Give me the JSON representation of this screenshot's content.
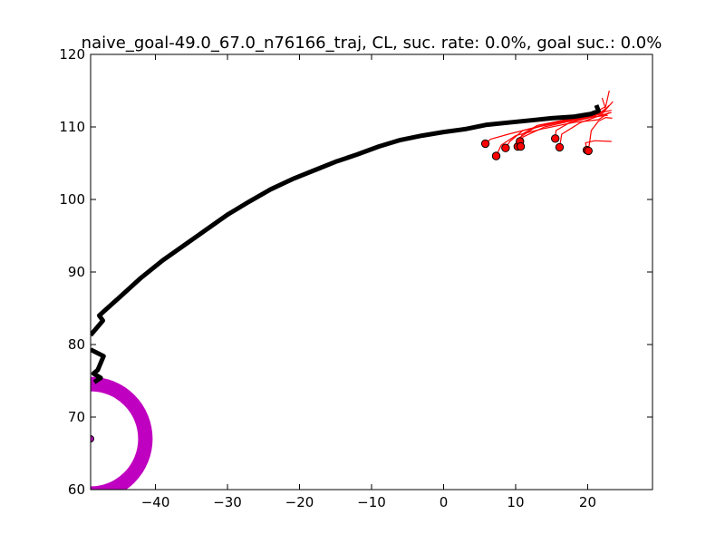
{
  "chart_data": {
    "type": "line",
    "title": "naive_goal-49.0_67.0_n76166_traj, CL, suc. rate: 0.0%, goal suc.: 0.0%",
    "xlabel": "",
    "ylabel": "",
    "xlim": [
      -49,
      29
    ],
    "ylim": [
      60,
      120
    ],
    "xticks": [
      -40,
      -30,
      -20,
      -10,
      0,
      10,
      20
    ],
    "yticks": [
      60,
      70,
      80,
      90,
      100,
      110,
      120
    ],
    "grid": false,
    "goal": {
      "center": [
        -49.0,
        67.0
      ],
      "radius": 7.6,
      "color": "#c000c0"
    },
    "series": [
      {
        "role": "main-trajectory",
        "color": "#000000",
        "points": [
          [
            -49.0,
            81.3
          ],
          [
            -47.3,
            83.3
          ],
          [
            -47.8,
            84.0
          ],
          [
            -45.0,
            86.5
          ],
          [
            -42.0,
            89.2
          ],
          [
            -39.0,
            91.6
          ],
          [
            -36.0,
            93.7
          ],
          [
            -33.0,
            95.8
          ],
          [
            -30.0,
            97.9
          ],
          [
            -27.0,
            99.7
          ],
          [
            -24.0,
            101.4
          ],
          [
            -21.0,
            102.8
          ],
          [
            -18.0,
            104.0
          ],
          [
            -15.0,
            105.2
          ],
          [
            -12.0,
            106.2
          ],
          [
            -9.0,
            107.3
          ],
          [
            -6.0,
            108.2
          ],
          [
            -3.0,
            108.8
          ],
          [
            0.0,
            109.3
          ],
          [
            3.0,
            109.7
          ],
          [
            6.0,
            110.3
          ],
          [
            9.0,
            110.6
          ],
          [
            12.0,
            110.9
          ],
          [
            15.0,
            111.2
          ],
          [
            18.0,
            111.4
          ],
          [
            20.5,
            111.8
          ],
          [
            21.5,
            112.2
          ],
          [
            21.2,
            113.0
          ]
        ]
      },
      {
        "role": "main-trajectory-tail",
        "color": "#000000",
        "points": [
          [
            -49.0,
            79.3
          ],
          [
            -47.2,
            78.4
          ],
          [
            -48.0,
            76.5
          ],
          [
            -48.6,
            76.0
          ],
          [
            -47.6,
            75.4
          ],
          [
            -48.5,
            74.8
          ]
        ]
      }
    ],
    "red_color": "#ff0000",
    "red_trajectories": [
      [
        [
          5.8,
          107.7
        ],
        [
          6.5,
          108.3
        ],
        [
          9.0,
          109.0
        ],
        [
          13.0,
          110.0
        ],
        [
          17.0,
          110.8
        ],
        [
          21.0,
          111.5
        ],
        [
          22.5,
          112.5
        ],
        [
          22.0,
          114.0
        ]
      ],
      [
        [
          7.3,
          106.0
        ],
        [
          8.0,
          107.5
        ],
        [
          10.0,
          108.8
        ],
        [
          14.0,
          109.8
        ],
        [
          18.0,
          110.6
        ],
        [
          21.5,
          111.0
        ],
        [
          23.0,
          112.0
        ]
      ],
      [
        [
          8.6,
          107.1
        ],
        [
          9.2,
          108.0
        ],
        [
          11.0,
          109.5
        ],
        [
          15.0,
          110.5
        ],
        [
          19.0,
          111.2
        ],
        [
          22.0,
          111.8
        ],
        [
          23.5,
          113.5
        ]
      ],
      [
        [
          10.3,
          107.3
        ],
        [
          10.5,
          108.5
        ],
        [
          12.5,
          109.8
        ],
        [
          16.0,
          110.8
        ],
        [
          20.0,
          111.5
        ],
        [
          22.5,
          112.8
        ],
        [
          23.0,
          115.0
        ]
      ],
      [
        [
          10.6,
          108.0
        ],
        [
          10.9,
          109.0
        ],
        [
          13.0,
          110.2
        ],
        [
          17.0,
          111.0
        ],
        [
          21.0,
          111.8
        ],
        [
          23.3,
          112.3
        ]
      ],
      [
        [
          10.7,
          107.3
        ],
        [
          11.0,
          108.6
        ],
        [
          14.0,
          110.0
        ],
        [
          18.0,
          110.9
        ],
        [
          21.0,
          111.4
        ],
        [
          22.8,
          111.6
        ]
      ],
      [
        [
          15.5,
          108.4
        ],
        [
          15.6,
          109.5
        ],
        [
          17.5,
          110.6
        ],
        [
          20.0,
          111.2
        ],
        [
          22.0,
          112.0
        ],
        [
          23.0,
          113.0
        ]
      ],
      [
        [
          16.1,
          107.2
        ],
        [
          16.4,
          109.0
        ],
        [
          19.0,
          110.6
        ],
        [
          21.5,
          111.5
        ],
        [
          23.3,
          112.0
        ]
      ],
      [
        [
          19.9,
          106.8
        ],
        [
          19.7,
          107.8
        ],
        [
          21.0,
          108.1
        ],
        [
          23.3,
          108.0
        ]
      ],
      [
        [
          20.1,
          106.7
        ],
        [
          20.5,
          109.5
        ],
        [
          21.5,
          110.8
        ],
        [
          22.5,
          111.3
        ],
        [
          23.4,
          111.2
        ]
      ]
    ],
    "end_markers": [
      [
        5.8,
        107.7
      ],
      [
        7.3,
        106.0
      ],
      [
        8.6,
        107.1
      ],
      [
        10.3,
        107.3
      ],
      [
        10.6,
        108.0
      ],
      [
        10.7,
        107.3
      ],
      [
        15.5,
        108.4
      ],
      [
        16.1,
        107.2
      ],
      [
        19.9,
        106.8
      ],
      [
        20.1,
        106.7
      ]
    ],
    "goal_marker": [
      -49.0,
      67.0
    ]
  }
}
